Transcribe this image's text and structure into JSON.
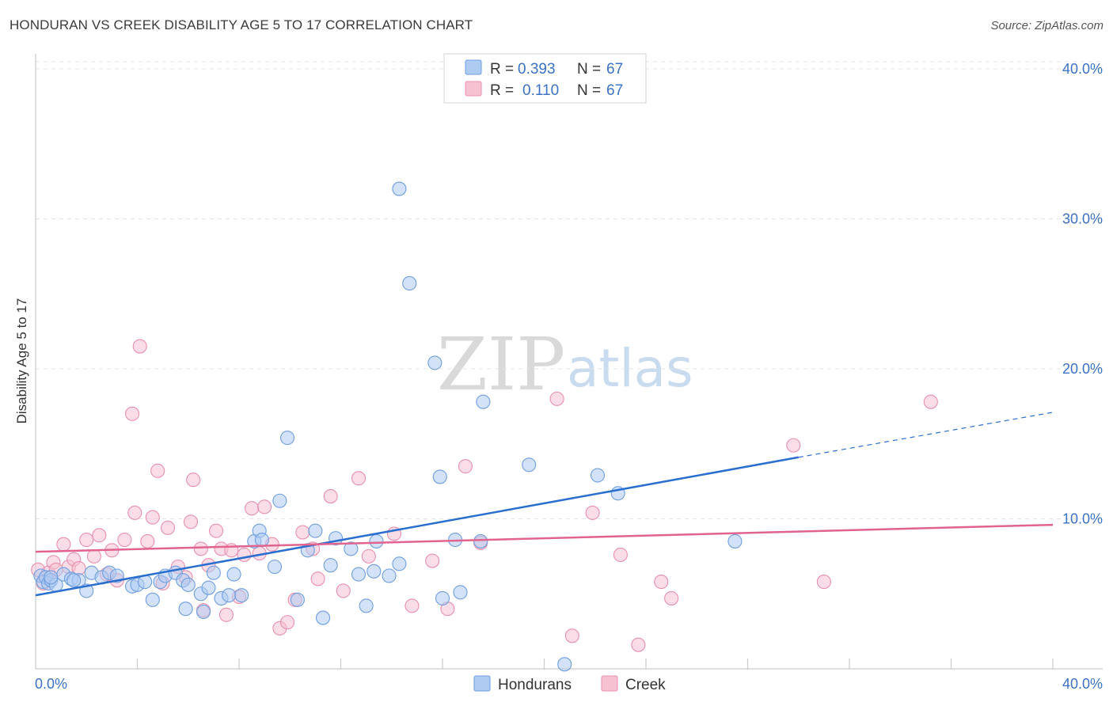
{
  "header": {
    "title": "HONDURAN VS CREEK DISABILITY AGE 5 TO 17 CORRELATION CHART",
    "source": "Source: ZipAtlas.com"
  },
  "colors": {
    "hondurans_fill": "#aecbf2",
    "hondurans_stroke": "#6f9ee0",
    "hondurans_line": "#2a6fcf",
    "creek_fill": "#f6c1d1",
    "creek_stroke": "#e990ac",
    "creek_line": "#e0648e",
    "accent_text": "#3b72c4"
  },
  "legend": {
    "rows": [
      {
        "r_label": "R =",
        "r_value": "0.393",
        "n_label": "N =",
        "n_value": "67"
      },
      {
        "r_label": "R =",
        "r_value": "0.110",
        "n_label": "N =",
        "n_value": "67"
      }
    ]
  },
  "watermark": {
    "zip": "ZIP",
    "atlas": "atlas"
  },
  "chart_data": {
    "type": "scatter",
    "title": "HONDURAN VS CREEK DISABILITY AGE 5 TO 17 CORRELATION CHART",
    "xlabel": "",
    "ylabel": "Disability Age 5 to 17",
    "xlim": [
      0,
      40
    ],
    "ylim": [
      0,
      41
    ],
    "x_tick_labels": [
      "0.0%",
      "40.0%"
    ],
    "y_ticks": [
      10,
      20,
      30,
      40
    ],
    "y_tick_labels": [
      "10.0%",
      "20.0%",
      "30.0%",
      "40.0%"
    ],
    "grid": true,
    "legend_position": "top-center",
    "series": [
      {
        "name": "Hondurans",
        "r": 0.393,
        "n": 67,
        "trend": {
          "x0": 0,
          "y0": 4.9,
          "x1": 30,
          "y1": 14.1,
          "dashed_to_x": 40,
          "dashed_to_y": 17.1
        },
        "points": [
          [
            0.2,
            6.2
          ],
          [
            0.3,
            5.8
          ],
          [
            0.4,
            6.1
          ],
          [
            0.5,
            5.7
          ],
          [
            0.6,
            5.9
          ],
          [
            0.8,
            5.6
          ],
          [
            1.1,
            6.3
          ],
          [
            1.4,
            6.0
          ],
          [
            1.7,
            5.9
          ],
          [
            2.0,
            5.2
          ],
          [
            2.2,
            6.4
          ],
          [
            2.6,
            6.1
          ],
          [
            2.9,
            6.4
          ],
          [
            3.2,
            6.2
          ],
          [
            3.8,
            5.5
          ],
          [
            4.0,
            5.6
          ],
          [
            4.3,
            5.8
          ],
          [
            4.6,
            4.6
          ],
          [
            4.9,
            5.8
          ],
          [
            5.1,
            6.2
          ],
          [
            5.5,
            6.4
          ],
          [
            5.8,
            5.9
          ],
          [
            5.9,
            4.0
          ],
          [
            6.0,
            5.6
          ],
          [
            6.5,
            5.0
          ],
          [
            6.6,
            3.8
          ],
          [
            6.8,
            5.4
          ],
          [
            7.0,
            6.4
          ],
          [
            7.3,
            4.7
          ],
          [
            7.6,
            4.9
          ],
          [
            7.8,
            6.3
          ],
          [
            8.1,
            4.9
          ],
          [
            8.6,
            8.5
          ],
          [
            8.8,
            9.2
          ],
          [
            8.9,
            8.6
          ],
          [
            9.4,
            6.8
          ],
          [
            9.6,
            11.2
          ],
          [
            9.9,
            15.4
          ],
          [
            10.3,
            4.6
          ],
          [
            10.7,
            7.9
          ],
          [
            11.0,
            9.2
          ],
          [
            11.3,
            3.4
          ],
          [
            11.6,
            6.9
          ],
          [
            11.8,
            8.7
          ],
          [
            12.4,
            8.0
          ],
          [
            12.7,
            6.3
          ],
          [
            13.0,
            4.2
          ],
          [
            13.3,
            6.5
          ],
          [
            13.4,
            8.5
          ],
          [
            13.9,
            6.2
          ],
          [
            14.3,
            7.0
          ],
          [
            14.3,
            32.0
          ],
          [
            14.7,
            25.7
          ],
          [
            15.7,
            20.4
          ],
          [
            15.9,
            12.8
          ],
          [
            16.0,
            4.7
          ],
          [
            16.5,
            8.6
          ],
          [
            16.7,
            5.1
          ],
          [
            17.5,
            8.5
          ],
          [
            17.6,
            17.8
          ],
          [
            19.4,
            13.6
          ],
          [
            20.8,
            0.3
          ],
          [
            22.1,
            12.9
          ],
          [
            22.9,
            11.7
          ],
          [
            27.5,
            8.5
          ],
          [
            0.6,
            6.1
          ],
          [
            1.5,
            5.9
          ]
        ]
      },
      {
        "name": "Creek",
        "r": 0.11,
        "n": 67,
        "trend": {
          "x0": 0,
          "y0": 7.8,
          "x1": 40,
          "y1": 9.6
        },
        "points": [
          [
            0.1,
            6.6
          ],
          [
            0.3,
            5.7
          ],
          [
            0.5,
            6.4
          ],
          [
            0.7,
            7.1
          ],
          [
            0.8,
            6.6
          ],
          [
            1.1,
            8.3
          ],
          [
            1.3,
            6.8
          ],
          [
            1.5,
            7.3
          ],
          [
            1.7,
            6.7
          ],
          [
            2.0,
            8.6
          ],
          [
            2.3,
            7.5
          ],
          [
            2.5,
            8.9
          ],
          [
            2.8,
            6.3
          ],
          [
            3.0,
            7.9
          ],
          [
            3.2,
            5.9
          ],
          [
            3.5,
            8.6
          ],
          [
            3.8,
            17.0
          ],
          [
            3.9,
            10.4
          ],
          [
            4.1,
            21.5
          ],
          [
            4.4,
            8.5
          ],
          [
            4.6,
            10.1
          ],
          [
            4.8,
            13.2
          ],
          [
            5.0,
            5.7
          ],
          [
            5.2,
            9.4
          ],
          [
            5.6,
            6.8
          ],
          [
            5.9,
            6.1
          ],
          [
            6.2,
            12.6
          ],
          [
            6.1,
            9.8
          ],
          [
            6.5,
            8.0
          ],
          [
            6.6,
            3.9
          ],
          [
            6.8,
            6.9
          ],
          [
            7.1,
            9.2
          ],
          [
            7.3,
            8.0
          ],
          [
            7.5,
            3.6
          ],
          [
            7.7,
            7.9
          ],
          [
            8.0,
            4.8
          ],
          [
            8.2,
            7.6
          ],
          [
            8.5,
            10.7
          ],
          [
            8.8,
            7.7
          ],
          [
            9.0,
            10.8
          ],
          [
            9.3,
            8.3
          ],
          [
            9.6,
            2.7
          ],
          [
            9.9,
            3.1
          ],
          [
            10.2,
            4.6
          ],
          [
            10.5,
            9.1
          ],
          [
            10.9,
            8.0
          ],
          [
            11.1,
            6.0
          ],
          [
            11.6,
            11.5
          ],
          [
            12.1,
            5.2
          ],
          [
            12.7,
            12.7
          ],
          [
            13.1,
            7.5
          ],
          [
            14.1,
            9.0
          ],
          [
            14.8,
            4.2
          ],
          [
            15.6,
            7.2
          ],
          [
            16.2,
            4.0
          ],
          [
            16.9,
            13.5
          ],
          [
            17.5,
            8.4
          ],
          [
            20.5,
            18.0
          ],
          [
            21.1,
            2.2
          ],
          [
            21.9,
            10.4
          ],
          [
            23.0,
            7.6
          ],
          [
            23.7,
            1.6
          ],
          [
            24.6,
            5.8
          ],
          [
            25.0,
            4.7
          ],
          [
            29.8,
            14.9
          ],
          [
            31.0,
            5.8
          ],
          [
            35.2,
            17.8
          ]
        ]
      }
    ]
  },
  "bottom_legend": {
    "items": [
      {
        "label": "Hondurans"
      },
      {
        "label": "Creek"
      }
    ]
  }
}
